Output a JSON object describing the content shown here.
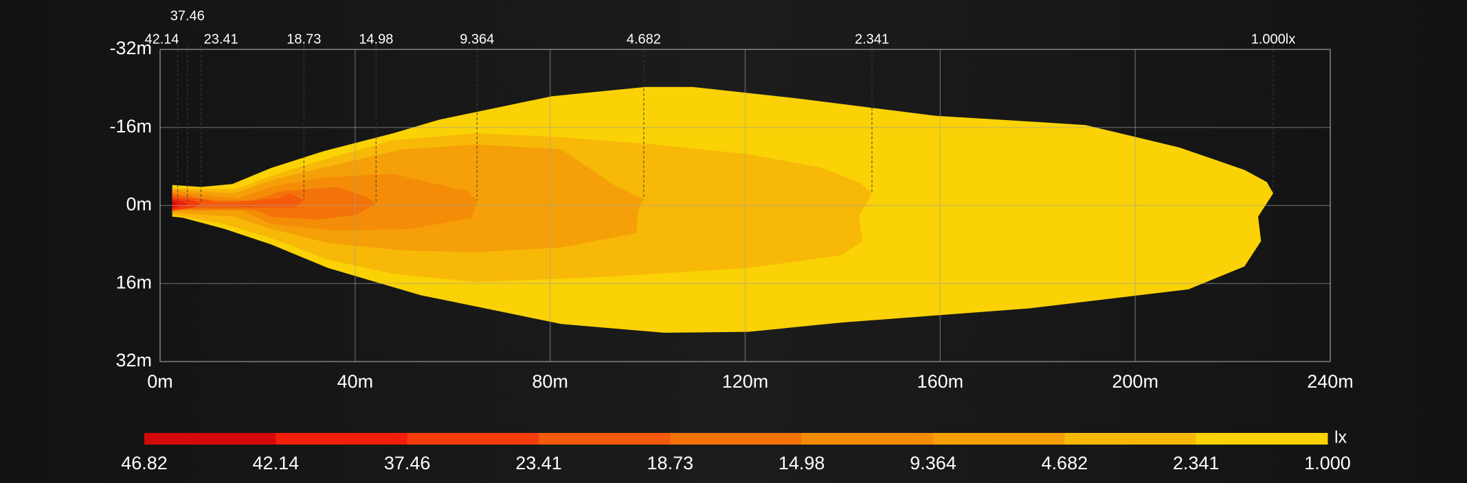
{
  "chart_data": {
    "type": "isolux",
    "xlim": [
      0,
      240
    ],
    "ylim": [
      -32,
      32
    ],
    "xticks": [
      {
        "value": 0,
        "label": "0m"
      },
      {
        "value": 40,
        "label": "40m"
      },
      {
        "value": 80,
        "label": "80m"
      },
      {
        "value": 120,
        "label": "120m"
      },
      {
        "value": 160,
        "label": "160m"
      },
      {
        "value": 200,
        "label": "200m"
      },
      {
        "value": 240,
        "label": "240m"
      }
    ],
    "yticks": [
      {
        "value": -32,
        "label": "-32m"
      },
      {
        "value": -16,
        "label": "-16m"
      },
      {
        "value": 0,
        "label": "0m"
      },
      {
        "value": 16,
        "label": "16m"
      },
      {
        "value": 32,
        "label": "32m"
      }
    ],
    "grid": true,
    "contours": [
      {
        "level": {
          "value": 1,
          "label": "1.000lx"
        },
        "color": "#fad205",
        "x": [
          2.5,
          8.4,
          14.8,
          22.8,
          33.4,
          47.8,
          57.3,
          80.4,
          99.6,
          109.2,
          130.3,
          159,
          189.8,
          209,
          222.4,
          227,
          228.3,
          225.2,
          225.8,
          222.4,
          210.9,
          178.2,
          139.8,
          120.7,
          103.4,
          82.3,
          53.5,
          34.4,
          22.8,
          13.2,
          4.6,
          2.5
        ],
        "y": [
          -4.2,
          -3.8,
          -4.4,
          -7.7,
          -11.1,
          -14.8,
          -17.6,
          -22.4,
          -24.3,
          -24.3,
          -22,
          -18.4,
          -16.5,
          -11.9,
          -7.3,
          -4.8,
          -2.5,
          2.3,
          7.3,
          12.5,
          17.2,
          21.1,
          24,
          25.9,
          26.1,
          24.3,
          18.4,
          12.8,
          8,
          4.8,
          2.5,
          2.3
        ]
      },
      {
        "level": 2.341,
        "color": "#f8b808",
        "x": [
          2.5,
          15.2,
          24.7,
          34.3,
          47.8,
          65,
          82.3,
          101.4,
          120.7,
          135.9,
          143.6,
          146,
          143.3,
          144.1,
          139.8,
          120.7,
          91.9,
          65,
          47.8,
          34.4,
          22.8,
          13.2,
          2.5
        ],
        "y": [
          -3.6,
          -3.3,
          -6.7,
          -9.6,
          -13.4,
          -14.8,
          -14,
          -12.5,
          -10.5,
          -7.7,
          -4.6,
          -2.5,
          2.3,
          7.3,
          10.2,
          12.8,
          14.6,
          15.7,
          14,
          11.1,
          6.7,
          3.8,
          1.9
        ]
      },
      {
        "level": 4.682,
        "color": "#f5a008",
        "x": [
          2.5,
          15.2,
          22.8,
          34.4,
          49.7,
          65,
          82.3,
          93.8,
          99.2,
          98.1,
          97.7,
          82.3,
          65,
          49.7,
          34.4,
          22.8,
          15.2,
          2.5
        ],
        "y": [
          -3.3,
          -2.5,
          -5.2,
          -8,
          -11.5,
          -12.5,
          -11.5,
          -3.8,
          -1.3,
          1,
          5.7,
          8.6,
          9.6,
          9.2,
          7.7,
          4.8,
          2.3,
          1.5
        ]
      },
      {
        "level": 9.364,
        "color": "#f58c08",
        "x": [
          2.5,
          16.1,
          22.8,
          32.8,
          47.8,
          63.1,
          65,
          64,
          51.6,
          36.3,
          22.8,
          16.7,
          2.5
        ],
        "y": [
          -2.9,
          -1.5,
          -3.8,
          -5.7,
          -6.5,
          -2.9,
          -1,
          2.5,
          4.8,
          5.2,
          3.8,
          1,
          1.1
        ]
      },
      {
        "level": 14.98,
        "color": "#f47308",
        "x": [
          2.5,
          11.5,
          19,
          24.7,
          36.3,
          42,
          44.3,
          40.2,
          32.4,
          22.8,
          19,
          2.5
        ],
        "y": [
          -2.5,
          -1,
          -1,
          -2.9,
          -3.8,
          -1.9,
          -0.4,
          1.9,
          2.9,
          2.3,
          0.8,
          0.8
        ]
      },
      {
        "level": 18.73,
        "color": "#f55a0a",
        "x": [
          2.5,
          13.2,
          24.7,
          26.7,
          29.5,
          27.6,
          19,
          2.5
        ],
        "y": [
          -2.1,
          -0.6,
          -1.5,
          -2.5,
          -1.1,
          0.4,
          0.4,
          0.4
        ]
      },
      {
        "level": 23.41,
        "color": "#f43c0a",
        "x": [
          2.5,
          6.9,
          8.4,
          6.9,
          2.5
        ],
        "y": [
          -1.7,
          -1,
          -0.4,
          0.4,
          1.1
        ]
      },
      {
        "level": 37.46,
        "color": "#f01e0a",
        "x": [
          2.5,
          4.8,
          5.6,
          2.5
        ],
        "y": [
          -1.3,
          -0.8,
          -0.2,
          0.8
        ]
      },
      {
        "level": 42.14,
        "color": "#d40a0a",
        "x": [
          2.5,
          3.6,
          2.5
        ],
        "y": [
          -1,
          -0.4,
          0.4
        ]
      }
    ],
    "legend": {
      "unit": "lx",
      "labels": [
        46.82,
        42.14,
        37.46,
        23.41,
        18.73,
        14.98,
        9.364,
        4.682,
        2.341,
        {
          "value": 1,
          "label": "1.000"
        }
      ],
      "colors": [
        "#d40a0a",
        "#f01e0a",
        "#f43c0a",
        "#f55a0a",
        "#f47308",
        "#f58c08",
        "#f5a008",
        "#f8b808",
        "#fad205"
      ]
    }
  }
}
